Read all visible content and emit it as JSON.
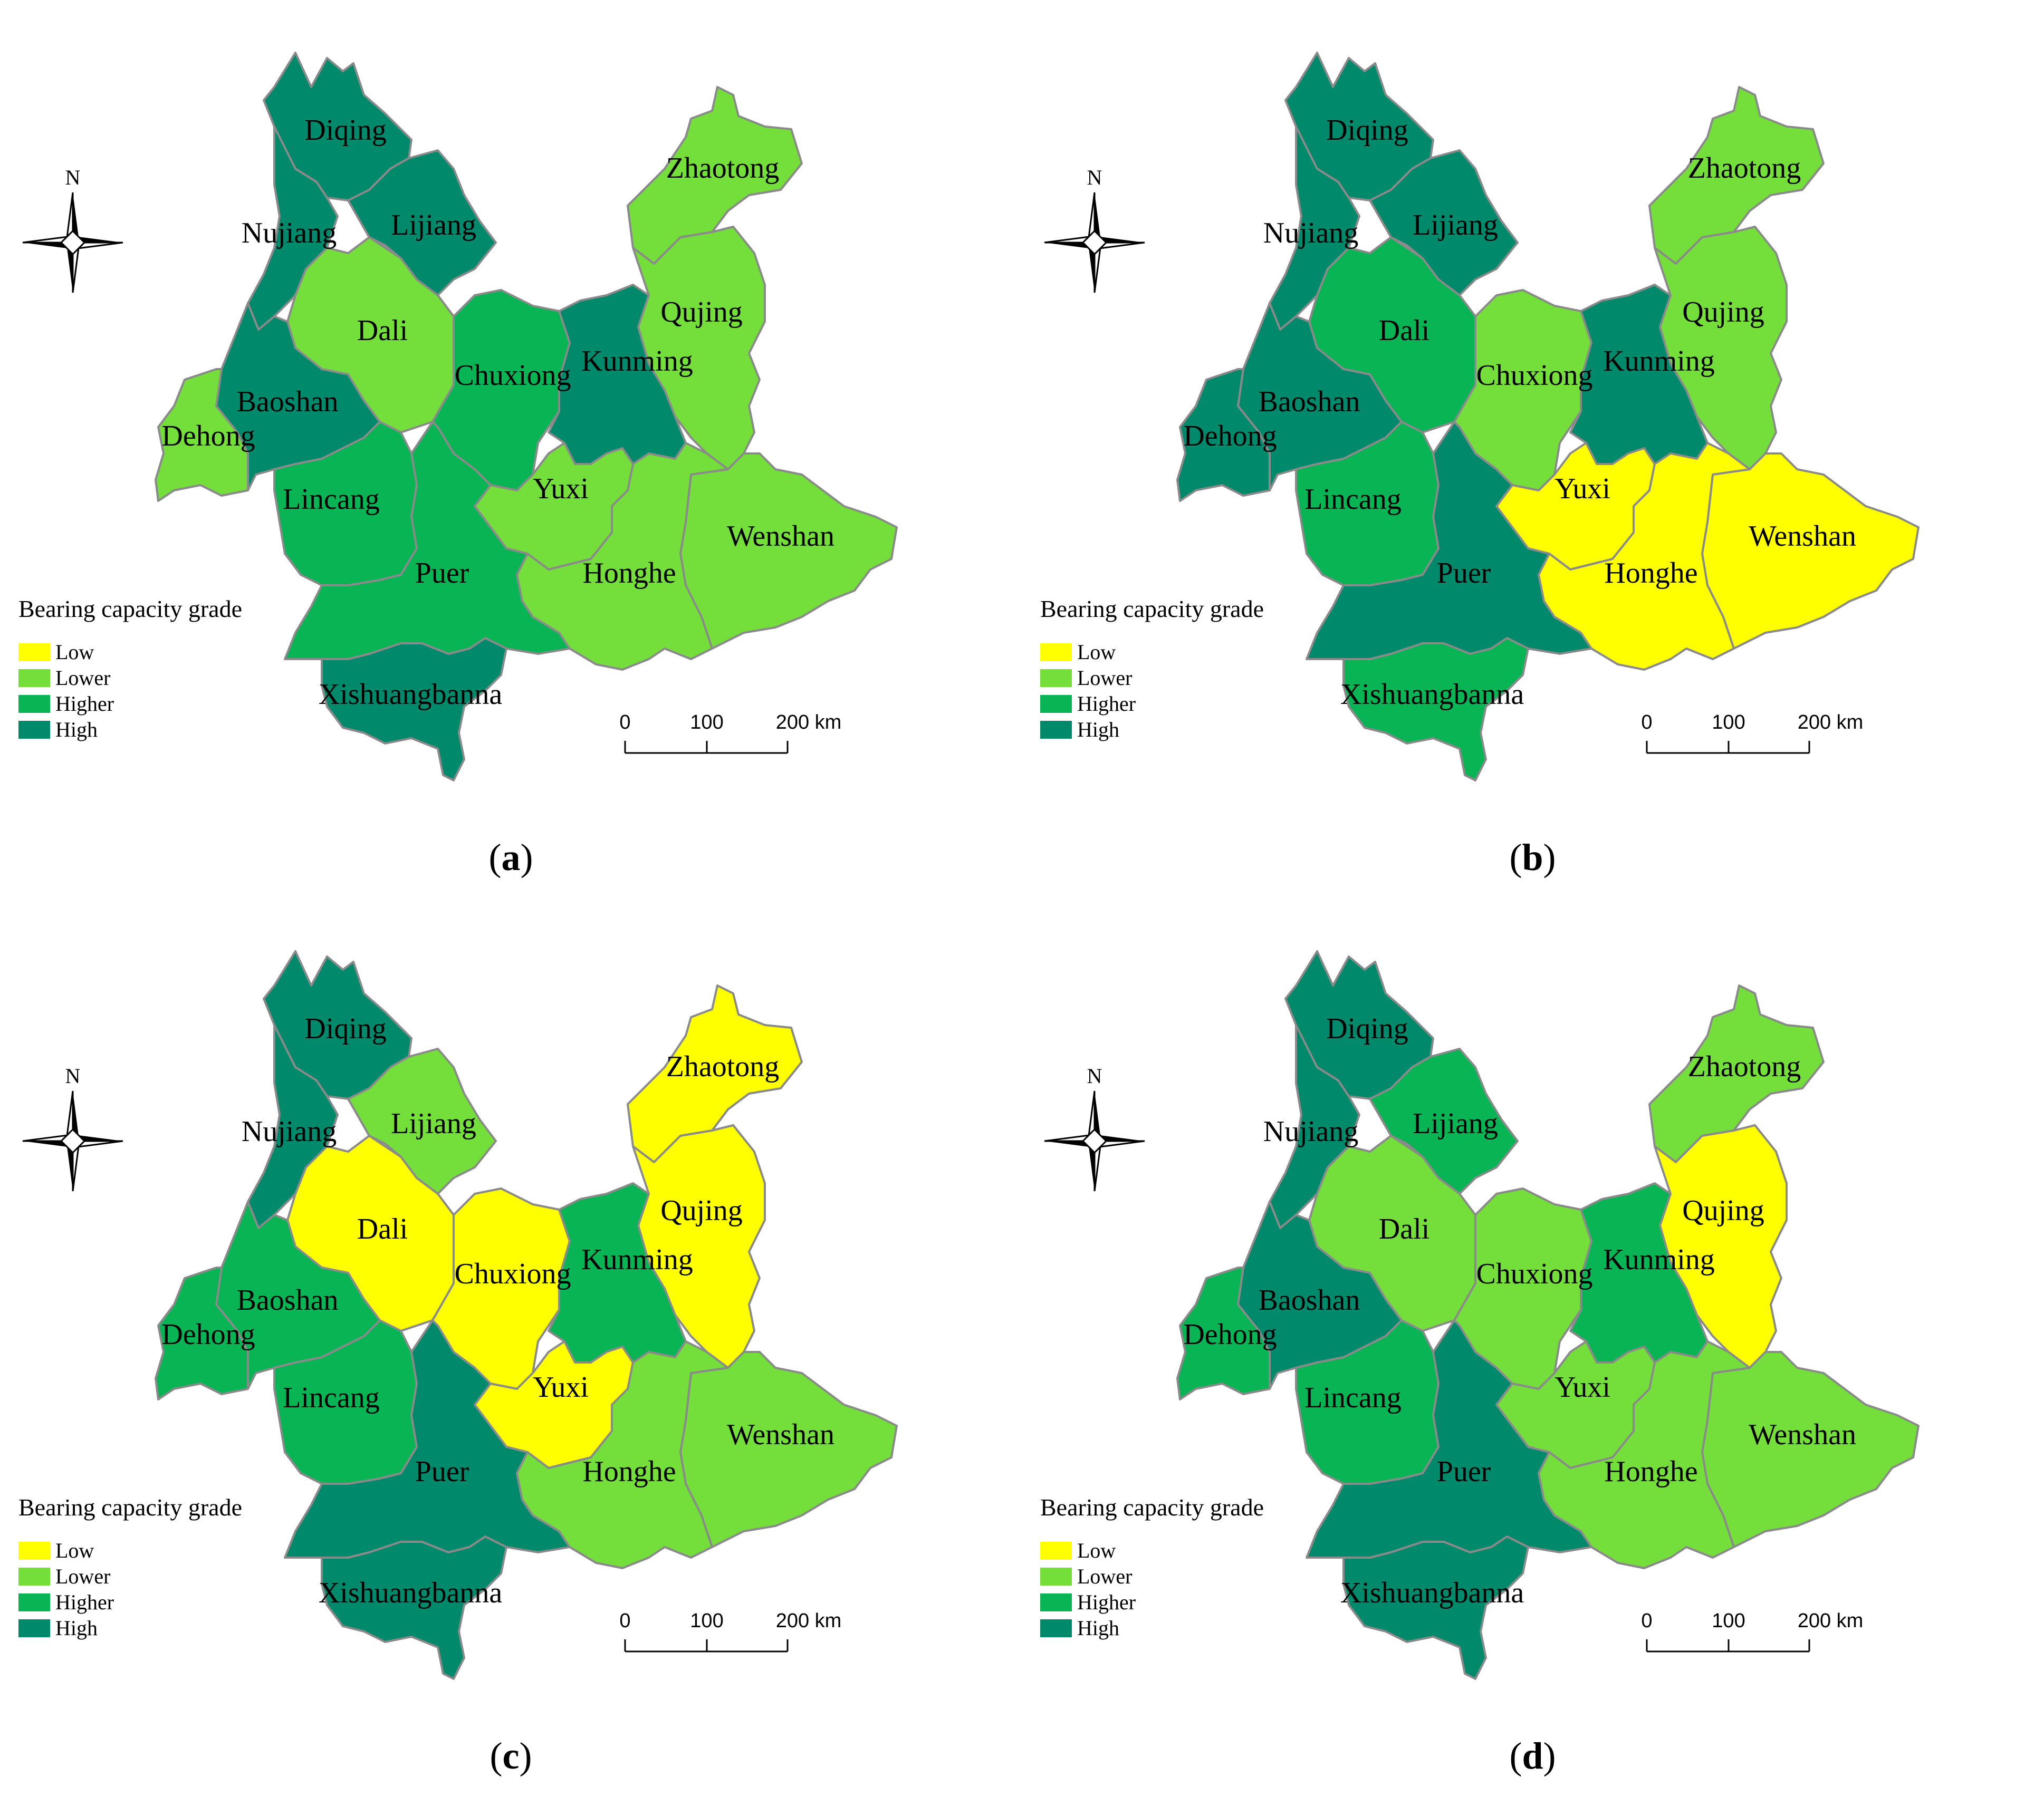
{
  "legend": {
    "title": "Bearing capacity grade",
    "grades": [
      {
        "key": "low",
        "label": "Low",
        "color": "#ffff00"
      },
      {
        "key": "lower",
        "label": "Lower",
        "color": "#74de3a"
      },
      {
        "key": "higher",
        "label": "Higher",
        "color": "#08b453"
      },
      {
        "key": "high",
        "label": "High",
        "color": "#00896a"
      }
    ]
  },
  "north_label": "N",
  "scale": {
    "ticks": [
      "0",
      "100",
      "200 km"
    ]
  },
  "region_names": [
    "Diqing",
    "Nujiang",
    "Lijiang",
    "Zhaotong",
    "Dali",
    "Qujing",
    "Baoshan",
    "Chuxiong",
    "Kunming",
    "Dehong",
    "Lincang",
    "Yuxi",
    "Wenshan",
    "Puer",
    "Honghe",
    "Xishuangbanna"
  ],
  "panels": [
    {
      "id": "a",
      "caption_open": "(",
      "caption_letter": "a",
      "caption_close": ")",
      "grades": {
        "Diqing": "high",
        "Nujiang": "high",
        "Lijiang": "high",
        "Zhaotong": "lower",
        "Dali": "lower",
        "Qujing": "lower",
        "Baoshan": "high",
        "Chuxiong": "higher",
        "Kunming": "high",
        "Dehong": "lower",
        "Lincang": "higher",
        "Yuxi": "lower",
        "Wenshan": "lower",
        "Puer": "higher",
        "Honghe": "lower",
        "Xishuangbanna": "high"
      }
    },
    {
      "id": "b",
      "caption_open": "(",
      "caption_letter": "b",
      "caption_close": ")",
      "grades": {
        "Diqing": "high",
        "Nujiang": "high",
        "Lijiang": "high",
        "Zhaotong": "lower",
        "Dali": "higher",
        "Qujing": "lower",
        "Baoshan": "high",
        "Chuxiong": "lower",
        "Kunming": "high",
        "Dehong": "high",
        "Lincang": "higher",
        "Yuxi": "low",
        "Wenshan": "low",
        "Puer": "high",
        "Honghe": "low",
        "Xishuangbanna": "higher"
      }
    },
    {
      "id": "c",
      "caption_open": "(",
      "caption_letter": "c",
      "caption_close": ")",
      "grades": {
        "Diqing": "high",
        "Nujiang": "high",
        "Lijiang": "lower",
        "Zhaotong": "low",
        "Dali": "low",
        "Qujing": "low",
        "Baoshan": "higher",
        "Chuxiong": "low",
        "Kunming": "higher",
        "Dehong": "higher",
        "Lincang": "higher",
        "Yuxi": "low",
        "Wenshan": "lower",
        "Puer": "high",
        "Honghe": "lower",
        "Xishuangbanna": "high"
      }
    },
    {
      "id": "d",
      "caption_open": "(",
      "caption_letter": "d",
      "caption_close": ")",
      "grades": {
        "Diqing": "high",
        "Nujiang": "high",
        "Lijiang": "higher",
        "Zhaotong": "lower",
        "Dali": "lower",
        "Qujing": "low",
        "Baoshan": "high",
        "Chuxiong": "lower",
        "Kunming": "higher",
        "Dehong": "higher",
        "Lincang": "higher",
        "Yuxi": "lower",
        "Wenshan": "lower",
        "Puer": "high",
        "Honghe": "lower",
        "Xishuangbanna": "high"
      }
    }
  ]
}
